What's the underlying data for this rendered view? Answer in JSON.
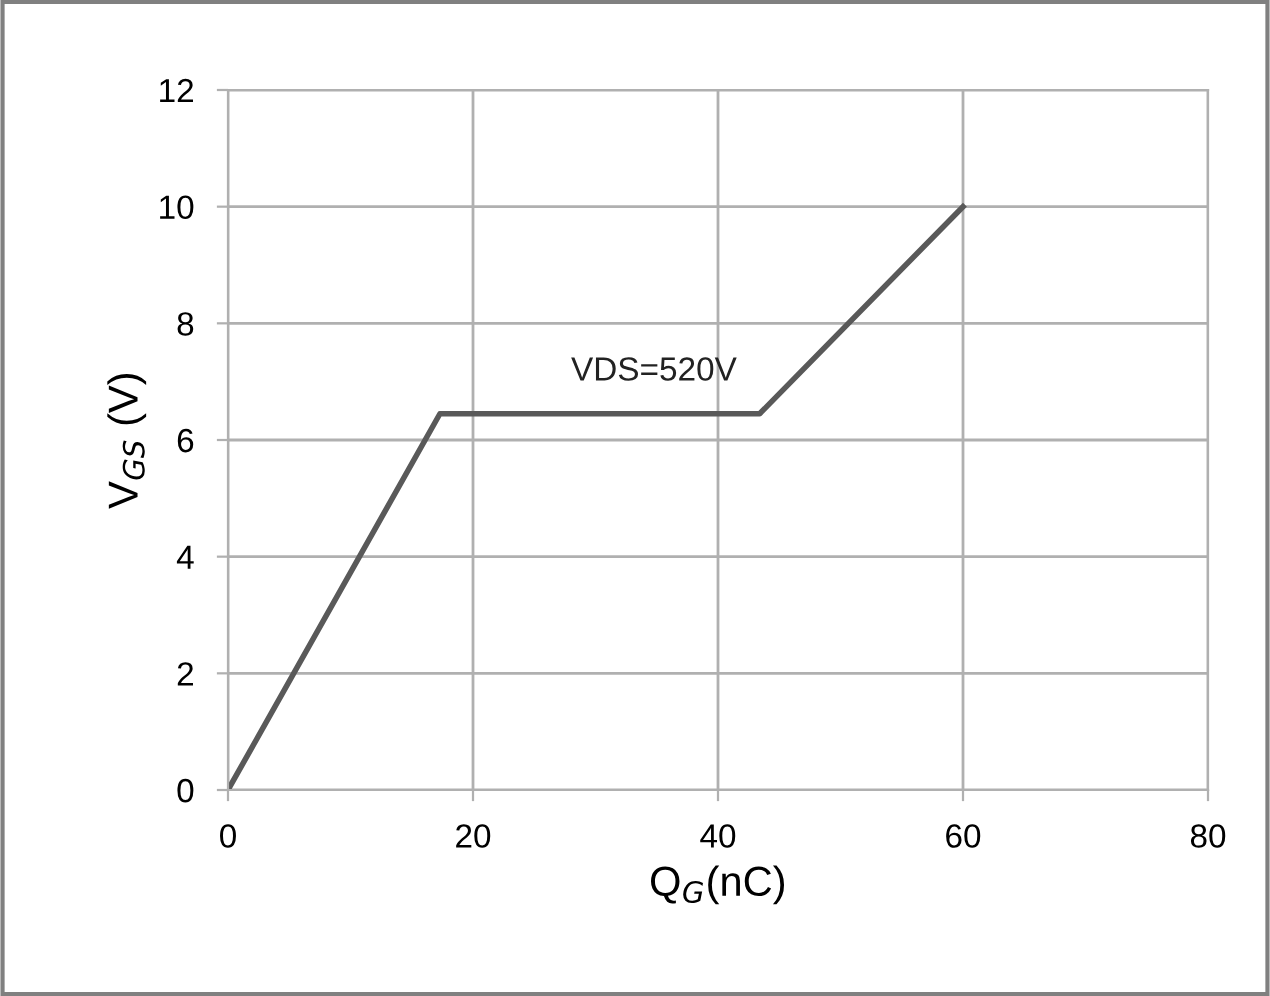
{
  "chart_data": {
    "type": "line",
    "xlabel": "Q$_{G}$(nC)",
    "ylabel": "V$_{GS}$ (V)",
    "x": [
      0,
      17.3,
      43.4,
      60
    ],
    "series": [
      {
        "color": "#595959",
        "values": [
          0,
          6.45,
          6.45,
          10
        ]
      }
    ],
    "xlim": [
      0,
      80
    ],
    "xticks": [
      0,
      20,
      40,
      60,
      80
    ],
    "ylim": [
      0,
      12
    ],
    "yticks": [
      0,
      2,
      4,
      6,
      8,
      10,
      12
    ],
    "grid": true,
    "marker": "none",
    "line_style": "solid",
    "annotations": [
      "VDS=520V"
    ]
  }
}
